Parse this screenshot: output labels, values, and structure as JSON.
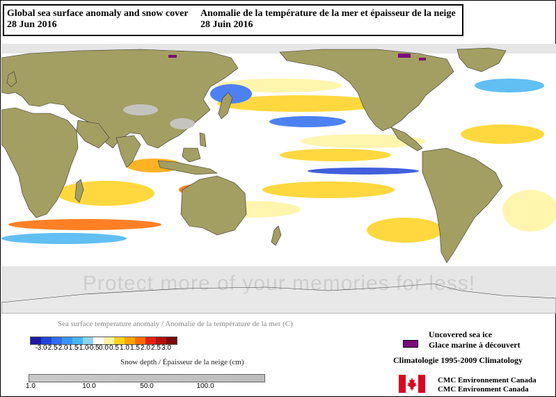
{
  "title": {
    "en_line1": "Global sea surface anomaly and snow cover",
    "en_line2": "28 Jun 2016",
    "fr_line1": "Anomalie de la température de la mer et épaisseur de la neige",
    "fr_line2": "28 Juin 2016"
  },
  "watermark": "Protect more of your memories for less!",
  "sst_legend": {
    "title": "Sea surface temperature anomaly / Anomalie de la température de la mer (C)",
    "ticks": [
      "-3.0",
      "-2.5",
      "-2.0",
      "-1.5",
      "-1.0",
      "-0.5",
      "0.0",
      "0.5",
      "1.0",
      "1.5",
      "2.0",
      "2.5",
      "3.0"
    ],
    "colors": [
      "#1a1aa8",
      "#2244d6",
      "#2f6cf0",
      "#3a94f4",
      "#46b4f2",
      "#8ed2f6",
      "#ffffff",
      "#fff4a0",
      "#ffd21e",
      "#ffa500",
      "#ff6a00",
      "#e02010",
      "#b01010",
      "#7a0808"
    ]
  },
  "snow_legend": {
    "title": "Snow depth / Épaisseur de la neige (cm)",
    "ticks": [
      "1.0",
      "10.0",
      "50.0",
      "100.0"
    ]
  },
  "ice_legend": {
    "line1": "Uncovered sea ice",
    "line2": "Glace marine à découvert",
    "color": "#7b0a7b"
  },
  "climatology": "Climatologie 1995-2009 Climatology",
  "agency": {
    "line1": "CMC  Environnement  Canada",
    "line2": "CMC  Environment  Canada"
  },
  "map_colors": {
    "land": "#a39e62",
    "ocean": "#ffffff",
    "sea_ice": "#e6e6e6",
    "snow": "#c8c8c8"
  }
}
